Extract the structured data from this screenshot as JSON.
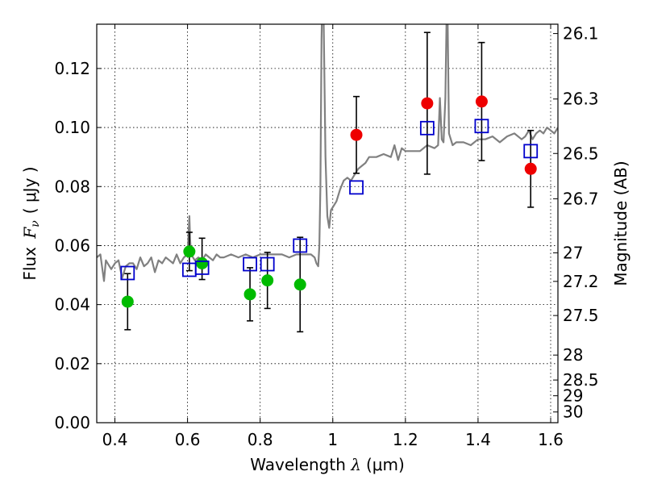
{
  "chart_data": {
    "type": "scatter",
    "title": "",
    "xlabel": {
      "text": "Wavelength ",
      "symbol": "λ",
      "unit": "(μm)"
    },
    "ylabel": {
      "text": "Flux ",
      "symbol": "F",
      "subscript": "ν",
      "unit": "( μJy )"
    },
    "y2label": "Magnitude (AB)",
    "xlim": [
      0.35,
      1.62
    ],
    "ylim": [
      0.0,
      0.135
    ],
    "grid": true,
    "xticks": [
      {
        "v": 0.4,
        "label": "0.4"
      },
      {
        "v": 0.6,
        "label": "0.6"
      },
      {
        "v": 0.8,
        "label": "0.8"
      },
      {
        "v": 1.0,
        "label": "1"
      },
      {
        "v": 1.2,
        "label": "1.2"
      },
      {
        "v": 1.4,
        "label": "1.4"
      },
      {
        "v": 1.6,
        "label": "1.6"
      }
    ],
    "yticks": [
      {
        "v": 0.0,
        "label": "0.00"
      },
      {
        "v": 0.02,
        "label": "0.02"
      },
      {
        "v": 0.04,
        "label": "0.04"
      },
      {
        "v": 0.06,
        "label": "0.06"
      },
      {
        "v": 0.08,
        "label": "0.08"
      },
      {
        "v": 0.1,
        "label": "0.10"
      },
      {
        "v": 0.12,
        "label": "0.12"
      }
    ],
    "y2ticks": [
      {
        "mag": 26.1,
        "label": "26.1"
      },
      {
        "mag": 26.3,
        "label": "26.3"
      },
      {
        "mag": 26.5,
        "label": "26.5"
      },
      {
        "mag": 26.7,
        "label": "26.7"
      },
      {
        "mag": 27.0,
        "label": "27"
      },
      {
        "mag": 27.2,
        "label": "27.2"
      },
      {
        "mag": 27.5,
        "label": "27.5"
      },
      {
        "mag": 28.0,
        "label": "28"
      },
      {
        "mag": 28.5,
        "label": "28.5"
      },
      {
        "mag": 29.0,
        "label": "29"
      },
      {
        "mag": 30.0,
        "label": "30"
      }
    ],
    "series": [
      {
        "type": "line",
        "color": "#808080",
        "x": [
          0.35,
          0.36,
          0.37,
          0.375,
          0.38,
          0.39,
          0.4,
          0.41,
          0.42,
          0.43,
          0.44,
          0.45,
          0.46,
          0.47,
          0.48,
          0.49,
          0.5,
          0.51,
          0.52,
          0.53,
          0.54,
          0.55,
          0.56,
          0.57,
          0.58,
          0.59,
          0.6,
          0.605,
          0.607,
          0.61,
          0.62,
          0.63,
          0.64,
          0.65,
          0.66,
          0.67,
          0.68,
          0.69,
          0.7,
          0.72,
          0.74,
          0.76,
          0.78,
          0.8,
          0.82,
          0.84,
          0.86,
          0.88,
          0.9,
          0.92,
          0.94,
          0.95,
          0.955,
          0.96,
          0.963,
          0.966,
          0.969,
          0.972,
          0.975,
          0.98,
          0.985,
          0.99,
          0.995,
          1.0,
          1.01,
          1.02,
          1.03,
          1.04,
          1.05,
          1.06,
          1.07,
          1.08,
          1.09,
          1.1,
          1.12,
          1.14,
          1.16,
          1.17,
          1.18,
          1.19,
          1.2,
          1.22,
          1.24,
          1.26,
          1.28,
          1.29,
          1.295,
          1.3,
          1.305,
          1.31,
          1.315,
          1.32,
          1.33,
          1.34,
          1.36,
          1.38,
          1.4,
          1.42,
          1.44,
          1.46,
          1.48,
          1.5,
          1.52,
          1.53,
          1.54,
          1.55,
          1.56,
          1.57,
          1.58,
          1.59,
          1.6,
          1.61,
          1.62
        ],
        "y": [
          0.056,
          0.057,
          0.048,
          0.055,
          0.054,
          0.052,
          0.054,
          0.055,
          0.049,
          0.053,
          0.054,
          0.054,
          0.052,
          0.056,
          0.053,
          0.054,
          0.056,
          0.051,
          0.055,
          0.054,
          0.056,
          0.055,
          0.054,
          0.057,
          0.054,
          0.056,
          0.057,
          0.07,
          0.062,
          0.057,
          0.055,
          0.056,
          0.055,
          0.057,
          0.056,
          0.055,
          0.057,
          0.056,
          0.056,
          0.057,
          0.056,
          0.057,
          0.056,
          0.057,
          0.057,
          0.057,
          0.057,
          0.056,
          0.057,
          0.057,
          0.057,
          0.056,
          0.054,
          0.053,
          0.06,
          0.08,
          0.13,
          0.15,
          0.135,
          0.09,
          0.07,
          0.066,
          0.072,
          0.073,
          0.075,
          0.079,
          0.082,
          0.083,
          0.082,
          0.084,
          0.086,
          0.087,
          0.088,
          0.09,
          0.09,
          0.091,
          0.09,
          0.094,
          0.089,
          0.093,
          0.092,
          0.092,
          0.092,
          0.094,
          0.093,
          0.094,
          0.11,
          0.096,
          0.095,
          0.11,
          0.15,
          0.098,
          0.094,
          0.095,
          0.095,
          0.094,
          0.096,
          0.096,
          0.097,
          0.095,
          0.097,
          0.098,
          0.096,
          0.097,
          0.099,
          0.096,
          0.098,
          0.099,
          0.098,
          0.1,
          0.099,
          0.098,
          0.1
        ]
      },
      {
        "type": "scatter",
        "marker": "circle",
        "color": "#00bb00",
        "x": [
          0.435,
          0.605,
          0.64,
          0.772,
          0.82,
          0.91
        ],
        "y": [
          0.041,
          0.058,
          0.054,
          0.0435,
          0.0482,
          0.0468
        ],
        "yerr_low": [
          0.0095,
          0.0065,
          0.0055,
          0.009,
          0.0095,
          0.016
        ],
        "yerr_high": [
          0.0095,
          0.0065,
          0.0085,
          0.009,
          0.0095,
          0.016
        ]
      },
      {
        "type": "scatter",
        "marker": "circle",
        "color": "#ee0000",
        "x": [
          1.065,
          1.26,
          1.41,
          1.545
        ],
        "y": [
          0.0975,
          0.1082,
          0.1088,
          0.086
        ],
        "yerr_low": [
          0.013,
          0.024,
          0.02,
          0.013
        ],
        "yerr_high": [
          0.013,
          0.024,
          0.02,
          0.013
        ]
      },
      {
        "type": "scatter",
        "marker": "square",
        "color": "#0000cc",
        "x": [
          0.435,
          0.605,
          0.64,
          0.772,
          0.82,
          0.91,
          1.065,
          1.26,
          1.41,
          1.545
        ],
        "y": [
          0.0507,
          0.0518,
          0.0525,
          0.0537,
          0.0537,
          0.06,
          0.0797,
          0.0998,
          0.1005,
          0.092
        ]
      }
    ]
  }
}
